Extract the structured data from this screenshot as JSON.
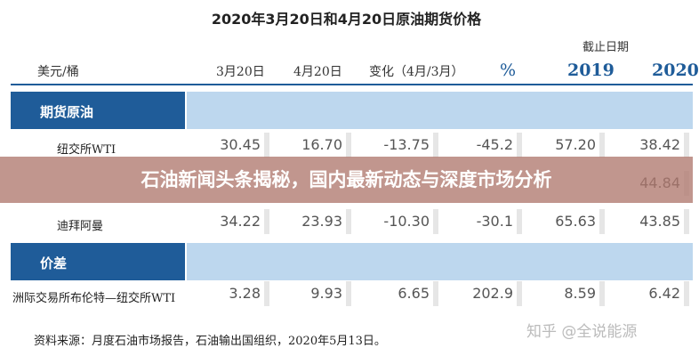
{
  "header": {
    "title": "2020年3月20日和4月20日原油期货价格",
    "deadline": "截止日期"
  },
  "table": {
    "columns": [
      "美元/桶",
      "3月20日",
      "4月20日",
      "变化（4月/3月）",
      "%",
      "2019",
      "2020"
    ],
    "sections": [
      {
        "name": "期货原油",
        "rows": [
          [
            "纽交所WTI",
            "30.45",
            "16.70",
            "-13.75",
            "-45.2",
            "57.20",
            "38.42"
          ],
          [
            null,
            null,
            null,
            null,
            null,
            null,
            "44.84"
          ],
          [
            "迪拜阿曼",
            "34.22",
            "23.93",
            "-10.30",
            "-30.1",
            "65.63",
            "43.85"
          ]
        ]
      },
      {
        "name": "价差",
        "rows": [
          [
            "洲际交易所布伦特—纽交所WTI",
            "3.28",
            "9.93",
            "6.65",
            "202.9",
            "8.59",
            "6.42"
          ]
        ]
      }
    ]
  },
  "footer": {
    "source": "资料来源：月度石油市场报告，石油输出国组织，2020年5月13日。",
    "watermark": "知乎 @全说能源"
  },
  "banner": {
    "text": "石油新闻头条揭秘，国内最新动态与深度市场分析"
  }
}
